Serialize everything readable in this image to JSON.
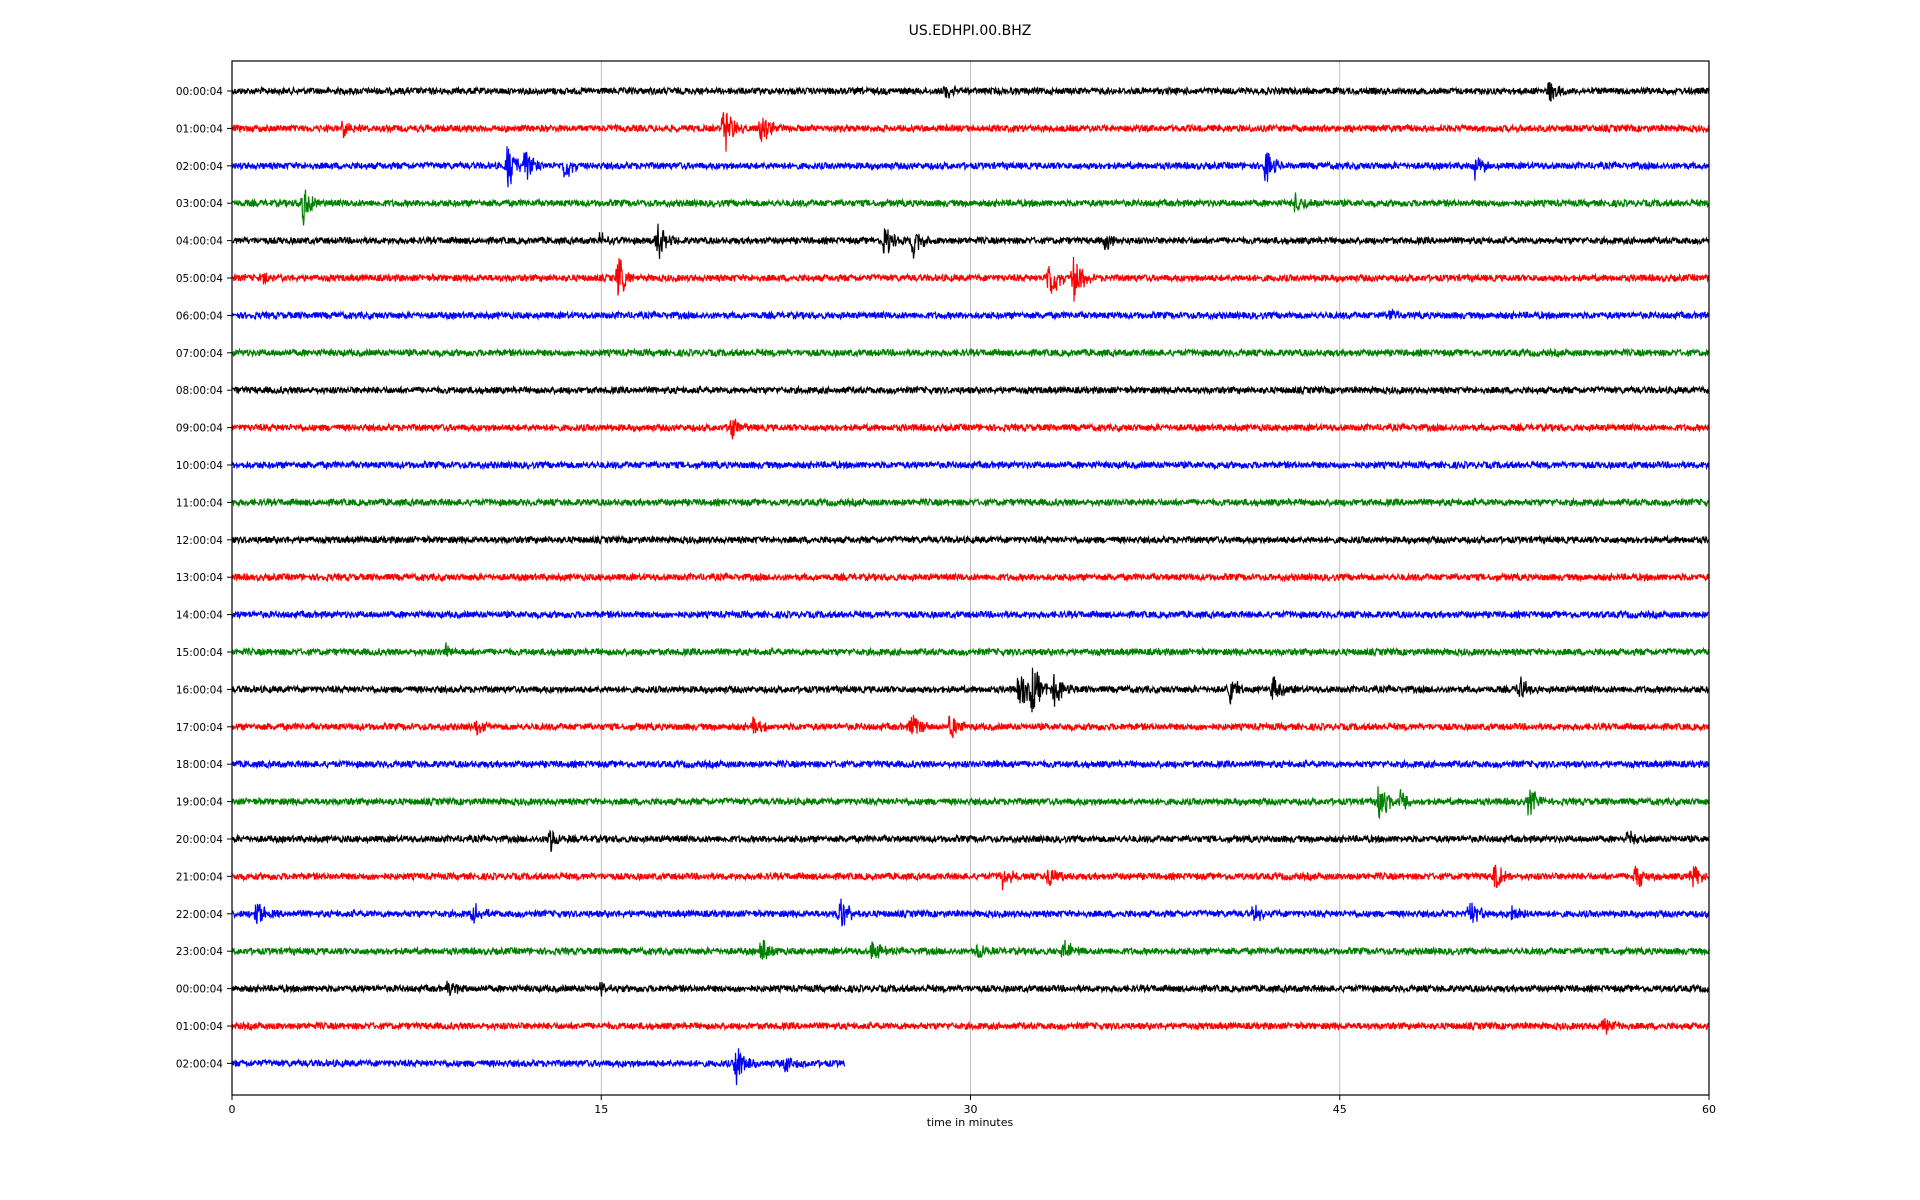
{
  "chart_data": {
    "type": "line",
    "title": "US.EDHPI.00.BHZ",
    "xlabel": "time in minutes",
    "ylabel": "",
    "xlim": [
      0,
      60
    ],
    "xticks": [
      "0",
      "15",
      "30",
      "45",
      "60"
    ],
    "x_gridlines": true,
    "trace_colors": [
      "#000000",
      "#ff0000",
      "#0000ff",
      "#008000"
    ],
    "rows": [
      {
        "label": "00:00:04",
        "end_minute": 60,
        "events": [
          {
            "t": 29,
            "amp": 0.25
          },
          {
            "t": 53.5,
            "amp": 0.35
          }
        ]
      },
      {
        "label": "01:00:04",
        "end_minute": 60,
        "events": [
          {
            "t": 4.5,
            "amp": 0.3
          },
          {
            "t": 20,
            "amp": 0.9
          },
          {
            "t": 21.5,
            "amp": 0.6
          }
        ]
      },
      {
        "label": "02:00:04",
        "end_minute": 60,
        "events": [
          {
            "t": 11.2,
            "amp": 0.9
          },
          {
            "t": 11.9,
            "amp": 0.7
          },
          {
            "t": 13.5,
            "amp": 0.5
          },
          {
            "t": 42,
            "amp": 0.6
          },
          {
            "t": 50.5,
            "amp": 0.45
          }
        ]
      },
      {
        "label": "03:00:04",
        "end_minute": 60,
        "events": [
          {
            "t": 2.9,
            "amp": 0.7
          },
          {
            "t": 43.2,
            "amp": 0.4
          }
        ]
      },
      {
        "label": "04:00:04",
        "end_minute": 60,
        "events": [
          {
            "t": 15,
            "amp": 0.35
          },
          {
            "t": 17.3,
            "amp": 0.7
          },
          {
            "t": 26.5,
            "amp": 0.6
          },
          {
            "t": 27.7,
            "amp": 0.6
          },
          {
            "t": 35.5,
            "amp": 0.35
          }
        ]
      },
      {
        "label": "05:00:04",
        "end_minute": 60,
        "events": [
          {
            "t": 1.2,
            "amp": 0.25
          },
          {
            "t": 15.7,
            "amp": 0.75
          },
          {
            "t": 33.2,
            "amp": 0.85
          },
          {
            "t": 34.2,
            "amp": 0.85
          }
        ]
      },
      {
        "label": "06:00:04",
        "end_minute": 60,
        "events": [
          {
            "t": 47,
            "amp": 0.2
          }
        ]
      },
      {
        "label": "07:00:04",
        "end_minute": 60,
        "events": []
      },
      {
        "label": "08:00:04",
        "end_minute": 60,
        "events": []
      },
      {
        "label": "09:00:04",
        "end_minute": 60,
        "events": [
          {
            "t": 20.3,
            "amp": 0.4
          }
        ]
      },
      {
        "label": "10:00:04",
        "end_minute": 60,
        "events": []
      },
      {
        "label": "11:00:04",
        "end_minute": 60,
        "events": []
      },
      {
        "label": "12:00:04",
        "end_minute": 60,
        "events": []
      },
      {
        "label": "13:00:04",
        "end_minute": 60,
        "events": []
      },
      {
        "label": "14:00:04",
        "end_minute": 60,
        "events": []
      },
      {
        "label": "15:00:04",
        "end_minute": 60,
        "events": [
          {
            "t": 8.7,
            "amp": 0.3
          }
        ]
      },
      {
        "label": "16:00:04",
        "end_minute": 60,
        "events": [
          {
            "t": 32,
            "amp": 0.75
          },
          {
            "t": 32.5,
            "amp": 1.0
          },
          {
            "t": 33.4,
            "amp": 0.6
          },
          {
            "t": 40.5,
            "amp": 0.6
          },
          {
            "t": 42.3,
            "amp": 0.6
          },
          {
            "t": 52.3,
            "amp": 0.45
          }
        ]
      },
      {
        "label": "17:00:04",
        "end_minute": 60,
        "events": [
          {
            "t": 9.9,
            "amp": 0.3
          },
          {
            "t": 21.2,
            "amp": 0.35
          },
          {
            "t": 27.6,
            "amp": 0.6
          },
          {
            "t": 29.2,
            "amp": 0.55
          }
        ]
      },
      {
        "label": "18:00:04",
        "end_minute": 60,
        "events": [
          {
            "t": 31,
            "amp": 0.2
          }
        ]
      },
      {
        "label": "19:00:04",
        "end_minute": 60,
        "events": [
          {
            "t": 46.6,
            "amp": 0.7
          },
          {
            "t": 47.5,
            "amp": 0.45
          },
          {
            "t": 52.7,
            "amp": 0.55
          }
        ]
      },
      {
        "label": "20:00:04",
        "end_minute": 60,
        "events": [
          {
            "t": 12.9,
            "amp": 0.5
          },
          {
            "t": 56.7,
            "amp": 0.3
          }
        ]
      },
      {
        "label": "21:00:04",
        "end_minute": 60,
        "events": [
          {
            "t": 31.3,
            "amp": 0.4
          },
          {
            "t": 33.2,
            "amp": 0.45
          },
          {
            "t": 51.3,
            "amp": 0.5
          },
          {
            "t": 57,
            "amp": 0.55
          },
          {
            "t": 59.3,
            "amp": 0.45
          }
        ]
      },
      {
        "label": "22:00:04",
        "end_minute": 60,
        "events": [
          {
            "t": 1,
            "amp": 0.55
          },
          {
            "t": 9.8,
            "amp": 0.4
          },
          {
            "t": 24.7,
            "amp": 0.6
          },
          {
            "t": 41.5,
            "amp": 0.35
          },
          {
            "t": 50.3,
            "amp": 0.55
          },
          {
            "t": 52,
            "amp": 0.4
          }
        ]
      },
      {
        "label": "23:00:04",
        "end_minute": 60,
        "events": [
          {
            "t": 21.5,
            "amp": 0.45
          },
          {
            "t": 26,
            "amp": 0.4
          },
          {
            "t": 30.3,
            "amp": 0.4
          },
          {
            "t": 33.8,
            "amp": 0.45
          }
        ]
      },
      {
        "label": "00:00:04",
        "end_minute": 60,
        "events": [
          {
            "t": 8.8,
            "amp": 0.3
          },
          {
            "t": 15,
            "amp": 0.2
          }
        ]
      },
      {
        "label": "01:00:04",
        "end_minute": 60,
        "events": [
          {
            "t": 55.7,
            "amp": 0.3
          }
        ]
      },
      {
        "label": "02:00:04",
        "end_minute": 24.9,
        "events": [
          {
            "t": 20.5,
            "amp": 0.75
          },
          {
            "t": 22.5,
            "amp": 0.3
          }
        ]
      }
    ]
  }
}
